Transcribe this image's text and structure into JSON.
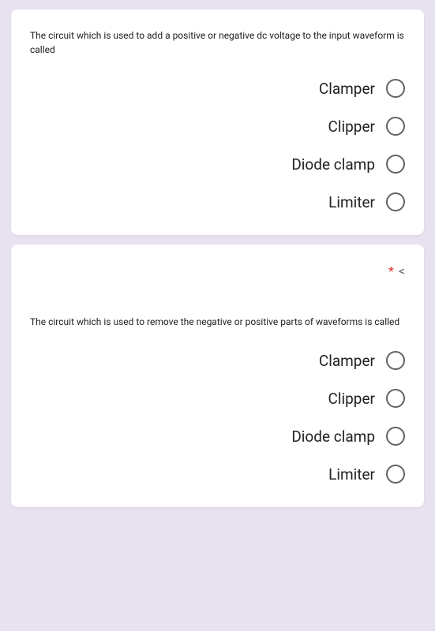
{
  "questions": [
    {
      "text": "The circuit which is used to add a positive or negative dc voltage to the input waveform is called",
      "required": false,
      "options": [
        "Clamper",
        "Clipper",
        "Diode clamp",
        "Limiter"
      ]
    },
    {
      "text": "The circuit which is used to remove the negative or positive parts of waveforms is called",
      "required": true,
      "options": [
        "Clamper",
        "Clipper",
        "Diode clamp",
        "Limiter"
      ]
    }
  ],
  "colors": {
    "background": "#e8e2f0",
    "card": "#ffffff",
    "text": "#202124",
    "radio_border": "#5f6368",
    "required": "#d93025"
  }
}
